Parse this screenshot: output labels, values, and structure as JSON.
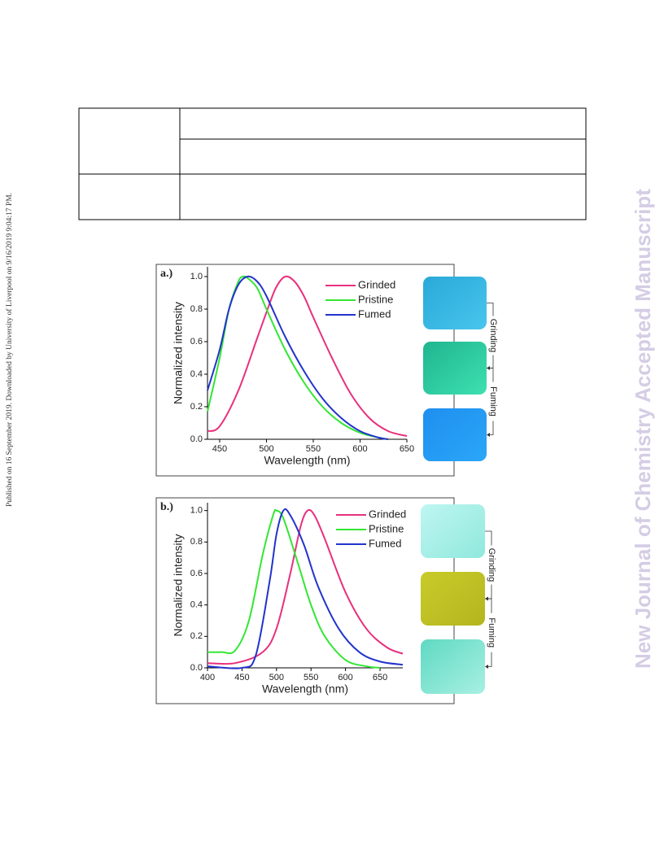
{
  "sidebar": "Published on 16 September 2019. Downloaded by University of Liverpool on 9/16/2019 9:04:17 PM.",
  "watermark": "New Journal of Chemistry Accepted Manuscript",
  "chart_data": [
    {
      "type": "line",
      "panel_label": "a.)",
      "xlabel": "Wavelength (nm)",
      "ylabel": "Normalized intensity",
      "xlim": [
        437,
        650
      ],
      "ylim": [
        0,
        1.06
      ],
      "xticks": [
        450,
        500,
        550,
        600,
        650
      ],
      "yticks": [
        {
          "value": 0,
          "label": "0.0"
        },
        0.2,
        0.4,
        0.6,
        0.8,
        {
          "value": 1,
          "label": "1.0"
        }
      ],
      "process_labels": [
        "Grinding",
        "Fuming"
      ],
      "series": [
        {
          "name": "Grinded",
          "color": "#e8307e",
          "x": [
            437,
            450,
            470,
            490,
            500,
            510,
            520,
            530,
            540,
            550,
            570,
            590,
            610,
            630,
            650
          ],
          "values": [
            0.05,
            0.08,
            0.3,
            0.62,
            0.78,
            0.93,
            1.0,
            0.97,
            0.88,
            0.75,
            0.5,
            0.28,
            0.13,
            0.05,
            0.02
          ]
        },
        {
          "name": "Pristine",
          "color": "#33e633",
          "x": [
            437,
            450,
            460,
            470,
            475,
            480,
            490,
            500,
            520,
            540,
            560,
            580,
            600,
            620,
            630
          ],
          "values": [
            0.17,
            0.5,
            0.8,
            0.97,
            1.0,
            0.99,
            0.93,
            0.8,
            0.55,
            0.35,
            0.2,
            0.1,
            0.04,
            0.01,
            0.0
          ]
        },
        {
          "name": "Fumed",
          "color": "#2233cc",
          "x": [
            437,
            450,
            460,
            470,
            480,
            490,
            500,
            520,
            540,
            560,
            580,
            600,
            620,
            630
          ],
          "values": [
            0.3,
            0.55,
            0.8,
            0.95,
            1.0,
            0.97,
            0.88,
            0.63,
            0.42,
            0.25,
            0.13,
            0.05,
            0.01,
            0.0
          ]
        }
      ]
    },
    {
      "type": "line",
      "panel_label": "b.)",
      "xlabel": "Wavelength (nm)",
      "ylabel": "Normalized intensity",
      "xlim": [
        400,
        683
      ],
      "ylim": [
        0,
        1.05
      ],
      "xticks": [
        400,
        450,
        500,
        550,
        600,
        650
      ],
      "yticks": [
        {
          "value": 0,
          "label": "0.0"
        },
        0.2,
        0.4,
        0.6,
        0.8,
        {
          "value": 1,
          "label": "1.0"
        }
      ],
      "process_labels": [
        "Grinding",
        "Fuming"
      ],
      "series": [
        {
          "name": "Grinded",
          "color": "#e8307e",
          "x": [
            400,
            440,
            480,
            500,
            520,
            535,
            545,
            555,
            570,
            600,
            630,
            660,
            683
          ],
          "values": [
            0.03,
            0.03,
            0.1,
            0.25,
            0.6,
            0.9,
            1.0,
            0.97,
            0.82,
            0.48,
            0.25,
            0.13,
            0.09
          ]
        },
        {
          "name": "Pristine",
          "color": "#33e633",
          "x": [
            400,
            420,
            440,
            460,
            480,
            495,
            500,
            510,
            530,
            550,
            570,
            600,
            630,
            650
          ],
          "values": [
            0.1,
            0.1,
            0.11,
            0.3,
            0.72,
            0.97,
            1.0,
            0.95,
            0.68,
            0.4,
            0.2,
            0.05,
            0.01,
            0.0
          ]
        },
        {
          "name": "Fumed",
          "color": "#2233cc",
          "x": [
            400,
            450,
            470,
            490,
            500,
            510,
            520,
            540,
            560,
            590,
            620,
            650,
            683
          ],
          "values": [
            0.01,
            0.0,
            0.08,
            0.55,
            0.85,
            1.0,
            0.97,
            0.78,
            0.52,
            0.25,
            0.1,
            0.04,
            0.02
          ]
        }
      ]
    }
  ]
}
